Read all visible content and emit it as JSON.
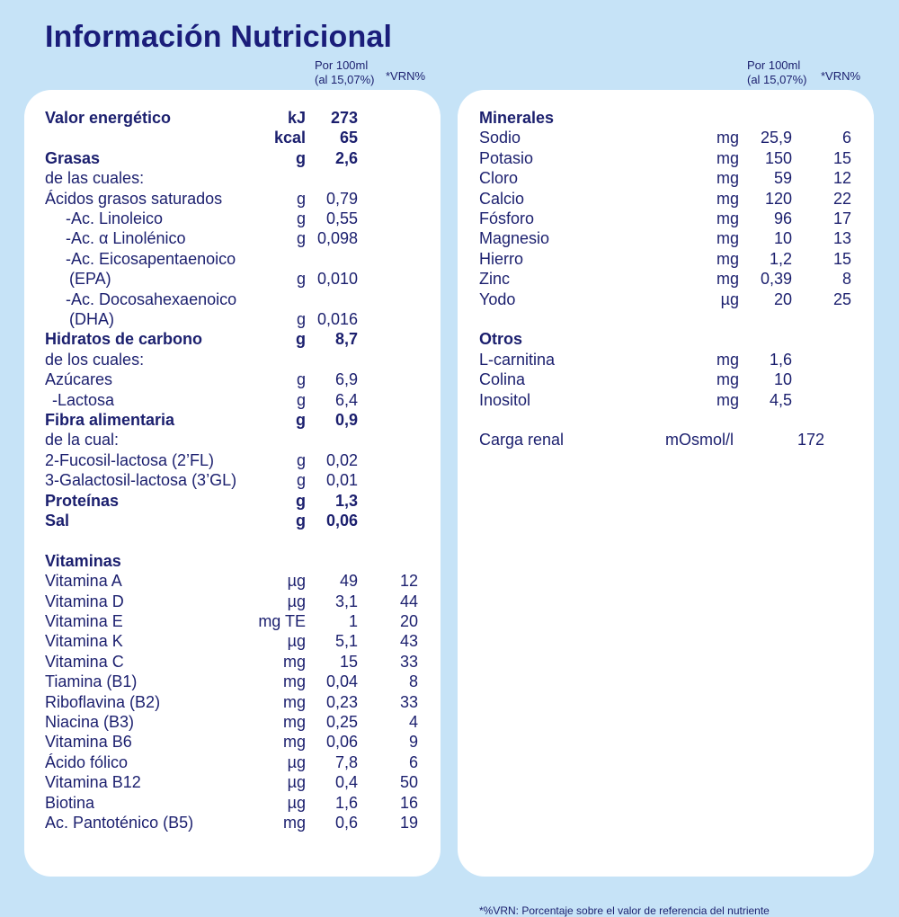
{
  "title": "Información Nutricional",
  "column_header": {
    "per": "Por 100ml",
    "dilution": "(al 15,07%)",
    "vrn": "*VRN%"
  },
  "left": [
    {
      "label": "Valor energético",
      "unit": "kJ",
      "value": "273",
      "bold": true
    },
    {
      "label": "",
      "unit": "kcal",
      "value": "65",
      "bold": true
    },
    {
      "label": "Grasas",
      "unit": "g",
      "value": "2,6",
      "bold": true
    },
    {
      "label": "de las cuales:"
    },
    {
      "label": "Ácidos grasos saturados",
      "unit": "g",
      "value": "0,79"
    },
    {
      "label": "-Ac. Linoleico",
      "unit": "g",
      "value": "0,55",
      "indent": 1
    },
    {
      "label": "-Ac. α Linolénico",
      "unit": "g",
      "value": "0,098",
      "indent": 1
    },
    {
      "label": "-Ac. Eicosapentaenoico",
      "indent": 1
    },
    {
      "label": "(EPA)",
      "unit": "g",
      "value": "0,010",
      "indent": 2
    },
    {
      "label": "-Ac. Docosahexaenoico",
      "indent": 1
    },
    {
      "label": "(DHA)",
      "unit": "g",
      "value": "0,016",
      "indent": 2
    },
    {
      "label": "Hidratos de carbono",
      "unit": "g",
      "value": "8,7",
      "bold": true
    },
    {
      "label": "de los cuales:"
    },
    {
      "label": "Azúcares",
      "unit": "g",
      "value": "6,9"
    },
    {
      "label": "-Lactosa",
      "unit": "g",
      "value": "6,4",
      "indent": 3
    },
    {
      "label": "Fibra alimentaria",
      "unit": "g",
      "value": "0,9",
      "bold": true
    },
    {
      "label": "de la cual:"
    },
    {
      "label": "2-Fucosil-lactosa (2’FL)",
      "unit": "g",
      "value": "0,02"
    },
    {
      "label": "3-Galactosil-lactosa (3’GL)",
      "unit": "g",
      "value": "0,01"
    },
    {
      "label": "Proteínas",
      "unit": "g",
      "value": "1,3",
      "bold": true
    },
    {
      "label": "Sal",
      "unit": "g",
      "value": "0,06",
      "bold": true
    },
    null,
    {
      "label": "Vitaminas",
      "bold": true
    },
    {
      "label": "Vitamina A",
      "unit": "µg",
      "value": "49",
      "vrn": "12"
    },
    {
      "label": "Vitamina D",
      "unit": "µg",
      "value": "3,1",
      "vrn": "44"
    },
    {
      "label": "Vitamina E",
      "unit": "mg TE",
      "value": "1",
      "vrn": "20"
    },
    {
      "label": "Vitamina K",
      "unit": "µg",
      "value": "5,1",
      "vrn": "43"
    },
    {
      "label": "Vitamina C",
      "unit": "mg",
      "value": "15",
      "vrn": "33"
    },
    {
      "label": "Tiamina (B1)",
      "unit": "mg",
      "value": "0,04",
      "vrn": "8"
    },
    {
      "label": "Riboflavina (B2)",
      "unit": "mg",
      "value": "0,23",
      "vrn": "33"
    },
    {
      "label": "Niacina (B3)",
      "unit": "mg",
      "value": "0,25",
      "vrn": "4"
    },
    {
      "label": "Vitamina B6",
      "unit": "mg",
      "value": "0,06",
      "vrn": "9"
    },
    {
      "label": "Ácido fólico",
      "unit": "µg",
      "value": "7,8",
      "vrn": "6"
    },
    {
      "label": "Vitamina B12",
      "unit": "µg",
      "value": "0,4",
      "vrn": "50"
    },
    {
      "label": "Biotina",
      "unit": "µg",
      "value": "1,6",
      "vrn": "16"
    },
    {
      "label": "Ac. Pantoténico (B5)",
      "unit": "mg",
      "value": "0,6",
      "vrn": "19"
    }
  ],
  "right": [
    {
      "label": "Minerales",
      "bold": true
    },
    {
      "label": "Sodio",
      "unit": "mg",
      "value": "25,9",
      "vrn": "6"
    },
    {
      "label": "Potasio",
      "unit": "mg",
      "value": "150",
      "vrn": "15"
    },
    {
      "label": "Cloro",
      "unit": "mg",
      "value": "59",
      "vrn": "12"
    },
    {
      "label": "Calcio",
      "unit": "mg",
      "value": "120",
      "vrn": "22"
    },
    {
      "label": "Fósforo",
      "unit": "mg",
      "value": "96",
      "vrn": "17"
    },
    {
      "label": "Magnesio",
      "unit": "mg",
      "value": "10",
      "vrn": "13"
    },
    {
      "label": "Hierro",
      "unit": "mg",
      "value": "1,2",
      "vrn": "15"
    },
    {
      "label": "Zinc",
      "unit": "mg",
      "value": "0,39",
      "vrn": "8"
    },
    {
      "label": "Yodo",
      "unit": "µg",
      "value": "20",
      "vrn": "25"
    },
    null,
    {
      "label": "Otros",
      "bold": true
    },
    {
      "label": "L-carnitina",
      "unit": "mg",
      "value": "1,6"
    },
    {
      "label": "Colina",
      "unit": "mg",
      "value": "10"
    },
    {
      "label": "Inositol",
      "unit": "mg",
      "value": "4,5"
    },
    null,
    {
      "label": "Carga renal",
      "unit": "mOsmol/l",
      "value": "172",
      "special": true
    }
  ],
  "footnote": "*%VRN: Porcentaje sobre el valor de referencia del nutriente",
  "colors": {
    "background": "#c6e3f7",
    "text": "#1b1f6e",
    "panel": "#ffffff"
  }
}
